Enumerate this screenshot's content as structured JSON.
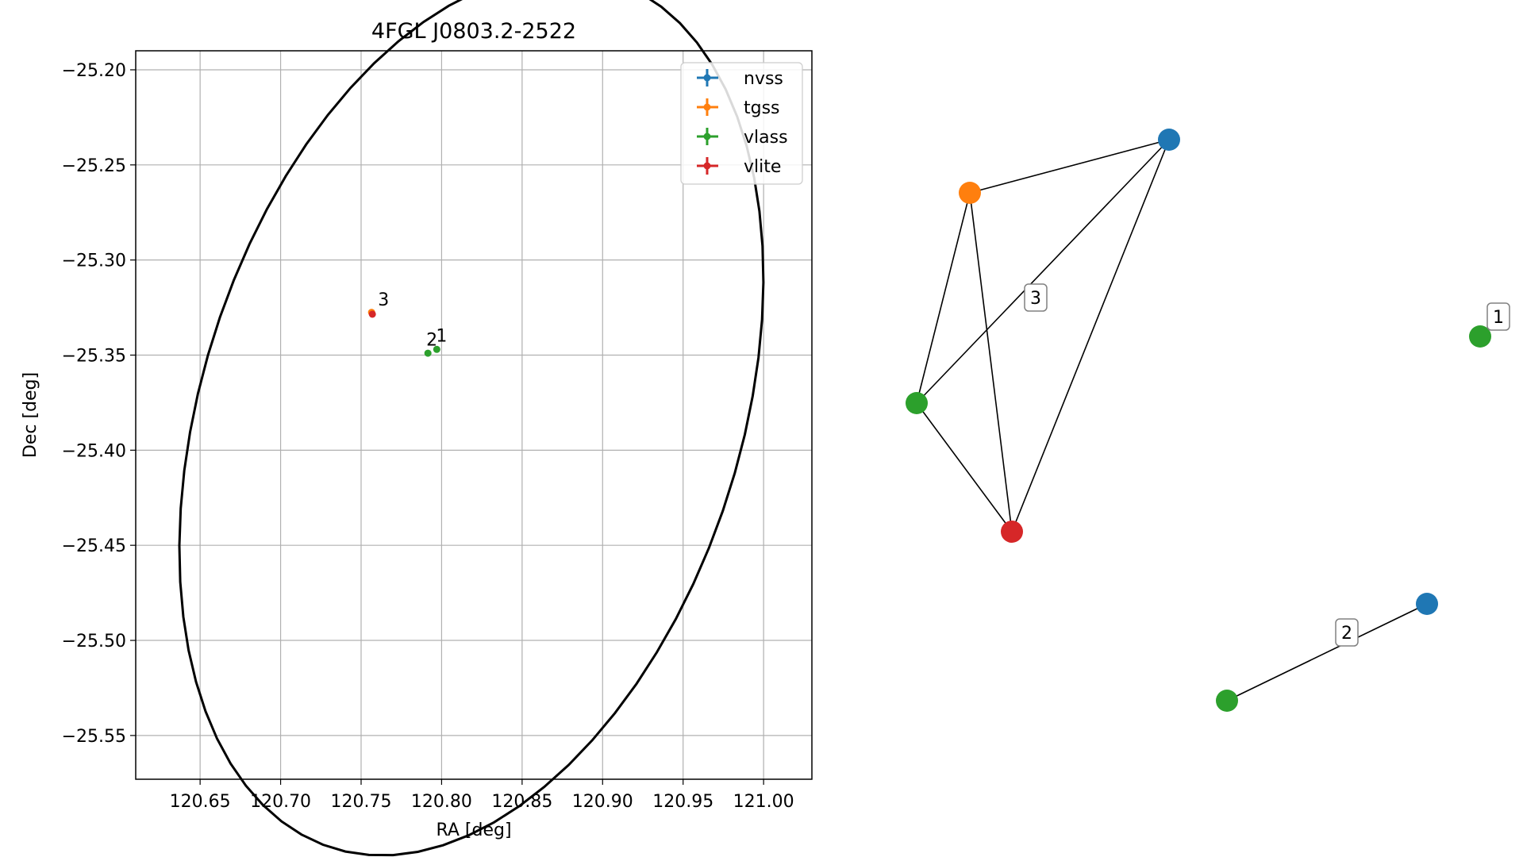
{
  "chart_data": [
    {
      "type": "scatter",
      "title": "4FGL J0803.2-2522",
      "xlabel": "RA [deg]",
      "ylabel": "Dec [deg]",
      "xlim": [
        120.61,
        121.03
      ],
      "ylim": [
        -25.573,
        -25.19
      ],
      "xticks": [
        120.65,
        120.7,
        120.75,
        120.8,
        120.85,
        120.9,
        120.95,
        121.0
      ],
      "xtick_labels": [
        "120.65",
        "120.70",
        "120.75",
        "120.80",
        "120.85",
        "120.90",
        "120.95",
        "121.00"
      ],
      "yticks": [
        -25.2,
        -25.25,
        -25.3,
        -25.35,
        -25.4,
        -25.45,
        -25.5,
        -25.55
      ],
      "ytick_labels": [
        "−25.20",
        "−25.25",
        "−25.30",
        "−25.35",
        "−25.40",
        "−25.45",
        "−25.50",
        "−25.55"
      ],
      "grid": true,
      "legend_position": "top-right",
      "series": [
        {
          "name": "nvss",
          "color": "#1f77b4",
          "points": []
        },
        {
          "name": "tgss",
          "color": "#ff7f0e",
          "points": [
            {
              "x": 120.7565,
              "y": -25.3275
            }
          ]
        },
        {
          "name": "vlass",
          "color": "#2ca02c",
          "points": [
            {
              "x": 120.7915,
              "y": -25.349
            },
            {
              "x": 120.797,
              "y": -25.347
            }
          ]
        },
        {
          "name": "vlite",
          "color": "#d62728",
          "points": [
            {
              "x": 120.757,
              "y": -25.3285
            }
          ]
        }
      ],
      "annotations": [
        {
          "text": "3",
          "x": 120.7605,
          "y": -25.324
        },
        {
          "text": "2",
          "x": 120.7905,
          "y": -25.345
        },
        {
          "text": "1",
          "x": 120.7965,
          "y": -25.343
        }
      ],
      "ellipse": {
        "color": "#000000",
        "center_ra": 120.8185,
        "center_dec": -25.381,
        "a": 0.245,
        "b": 0.1635,
        "angle_deg": 64.5
      }
    },
    {
      "type": "network",
      "groups": [
        {
          "label": "3",
          "nodes": [
            {
              "id": "nvss",
              "color": "#1f77b4"
            },
            {
              "id": "tgss",
              "color": "#ff7f0e"
            },
            {
              "id": "vlass",
              "color": "#2ca02c"
            },
            {
              "id": "vlite",
              "color": "#d62728"
            }
          ],
          "edges": [
            [
              "tgss",
              "nvss"
            ],
            [
              "tgss",
              "vlass"
            ],
            [
              "tgss",
              "vlite"
            ],
            [
              "nvss",
              "vlass"
            ],
            [
              "nvss",
              "vlite"
            ],
            [
              "vlass",
              "vlite"
            ]
          ]
        },
        {
          "label": "1",
          "nodes": [
            {
              "id": "vlass",
              "color": "#2ca02c"
            }
          ],
          "edges": []
        },
        {
          "label": "2",
          "nodes": [
            {
              "id": "vlass",
              "color": "#2ca02c"
            },
            {
              "id": "nvss",
              "color": "#1f77b4"
            }
          ],
          "edges": [
            [
              "vlass",
              "nvss"
            ]
          ]
        }
      ]
    }
  ]
}
